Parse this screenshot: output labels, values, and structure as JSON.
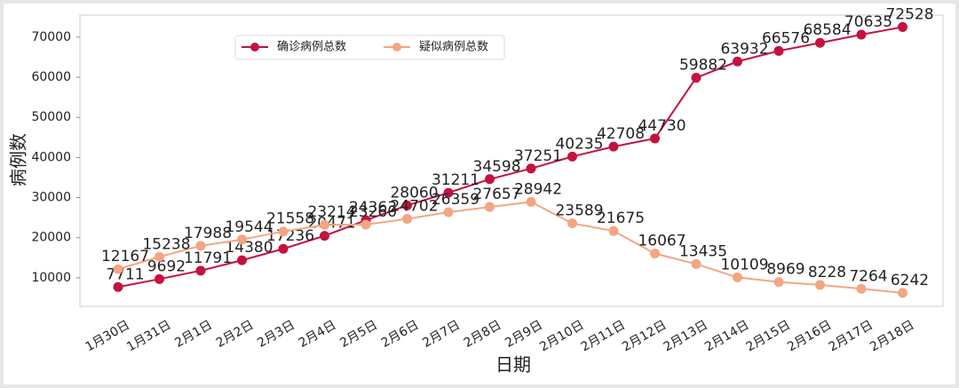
{
  "chart_data": {
    "type": "line",
    "xlabel": "日期",
    "ylabel": "病例数",
    "categories": [
      "1月30日",
      "1月31日",
      "2月1日",
      "2月2日",
      "2月3日",
      "2月4日",
      "2月5日",
      "2月6日",
      "2月7日",
      "2月8日",
      "2月9日",
      "2月10日",
      "2月11日",
      "2月12日",
      "2月13日",
      "2月14日",
      "2月15日",
      "2月16日",
      "2月17日",
      "2月18日"
    ],
    "series": [
      {
        "name": "确诊病例总数",
        "color": "#c4123f",
        "values": [
          7711,
          9692,
          11791,
          14380,
          17236,
          20471,
          24363,
          28060,
          31211,
          34598,
          37251,
          40235,
          42708,
          44730,
          59882,
          63932,
          66576,
          68584,
          70635,
          72528
        ]
      },
      {
        "name": "疑似病例总数",
        "color": "#f4a582",
        "values": [
          12167,
          15238,
          17988,
          19544,
          21558,
          23214,
          23260,
          24702,
          26359,
          27657,
          28942,
          23589,
          21675,
          16067,
          13435,
          10109,
          8969,
          8228,
          7264,
          6242
        ]
      }
    ],
    "ylim": [
      2900,
      75500
    ],
    "yticks": [
      10000,
      20000,
      30000,
      40000,
      50000,
      60000,
      70000
    ],
    "legend": "upper-left"
  }
}
